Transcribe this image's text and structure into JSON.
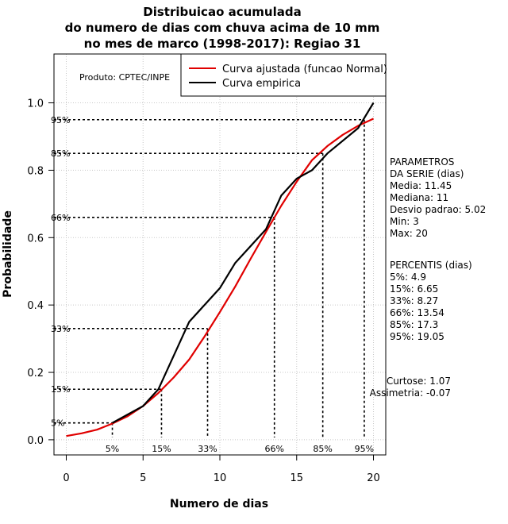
{
  "chart_data": {
    "type": "line",
    "title": [
      "Distribuicao acumulada",
      "do numero de dias com chuva acima de 10 mm",
      "no mes de marco (1998-2017): Regiao 31"
    ],
    "xlabel": "Numero de dias",
    "ylabel": "Probabilidade",
    "xlim": [
      -0.8,
      20.8
    ],
    "ylim": [
      -0.045,
      1.145
    ],
    "x_ticks": [
      "0",
      "5",
      "10",
      "15",
      "20"
    ],
    "x_tick_values": [
      0,
      5,
      10,
      15,
      20
    ],
    "y_ticks": [
      "0.0",
      "0.2",
      "0.4",
      "0.6",
      "0.8",
      "1.0"
    ],
    "y_tick_values": [
      0,
      0.2,
      0.4,
      0.6,
      0.8,
      1.0
    ],
    "grid": true,
    "producer": "Produto: CPTEC/INPE",
    "legend": [
      {
        "label": "Curva ajustada (funcao Normal)",
        "color": "#e00000"
      },
      {
        "label": "Curva empirica",
        "color": "#000000"
      }
    ],
    "series": [
      {
        "name": "Curva ajustada (funcao Normal)",
        "color": "#e00000",
        "x": [
          0,
          1,
          2,
          3,
          4,
          5,
          6,
          7,
          8,
          9,
          10,
          11,
          12,
          13,
          14,
          15,
          16,
          17,
          18,
          19,
          20
        ],
        "y": [
          0.011,
          0.019,
          0.03,
          0.048,
          0.07,
          0.1,
          0.139,
          0.185,
          0.238,
          0.306,
          0.379,
          0.455,
          0.537,
          0.617,
          0.695,
          0.766,
          0.83,
          0.872,
          0.905,
          0.932,
          0.953
        ]
      },
      {
        "name": "Curva empirica",
        "color": "#000000",
        "x": [
          3,
          5,
          6,
          8,
          10,
          11,
          13,
          14,
          15,
          16,
          17,
          19,
          20
        ],
        "y": [
          0.05,
          0.1,
          0.15,
          0.35,
          0.45,
          0.525,
          0.625,
          0.725,
          0.775,
          0.8,
          0.85,
          0.925,
          1.0
        ]
      }
    ],
    "percentile_markers": [
      {
        "label": "5%",
        "x": 3.0,
        "p": 0.05
      },
      {
        "label": "15%",
        "x": 6.2,
        "p": 0.15
      },
      {
        "label": "33%",
        "x": 9.2,
        "p": 0.33
      },
      {
        "label": "66%",
        "x": 13.55,
        "p": 0.66
      },
      {
        "label": "85%",
        "x": 16.7,
        "p": 0.85
      },
      {
        "label": "95%",
        "x": 19.4,
        "p": 0.95
      }
    ],
    "side_panel": {
      "params_lines": [
        "PARAMETROS",
        "DA SERIE (dias)",
        "   Media: 11.45",
        "   Mediana: 11",
        "   Desvio padrao: 5.02",
        "   Min: 3",
        "   Max: 20"
      ],
      "percentis_lines": [
        "PERCENTIS (dias)",
        "   5%: 4.9",
        "   15%: 6.65",
        "   33%: 8.27",
        "   66%: 13.54",
        "   85%: 17.3",
        "   95%: 19.05"
      ],
      "stats_lines": [
        "Curtose: 1.07",
        "Assimetria: -0.07"
      ]
    }
  }
}
